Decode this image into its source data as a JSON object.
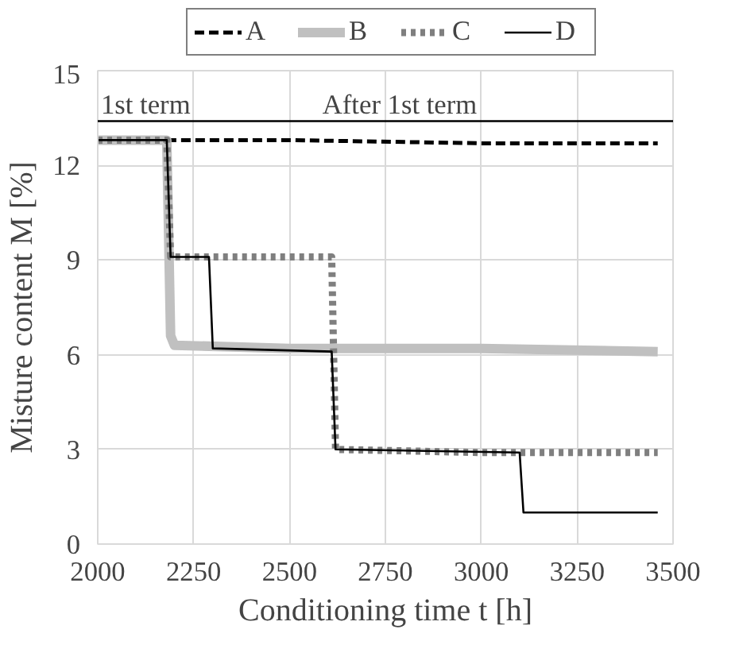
{
  "chart_data": {
    "type": "line",
    "xlabel": "Conditioning time t [h]",
    "ylabel": "Misture content M [%]",
    "xlim": [
      2000,
      3500
    ],
    "xticks": [
      2000,
      2250,
      2500,
      2750,
      3000,
      3250,
      3500
    ],
    "ylim": [
      0,
      15
    ],
    "yticks": [
      0,
      3,
      6,
      9,
      12,
      15
    ],
    "grid": true,
    "legend": "top",
    "marker": "none",
    "series": [
      {
        "name": "A",
        "color": "#000000",
        "line_style": "dashed",
        "x": [
          2180,
          2200,
          2500,
          3000,
          3460
        ],
        "values": [
          12.8,
          12.8,
          12.8,
          12.7,
          12.7
        ]
      },
      {
        "name": "B",
        "color": "#c0c0c0",
        "line_style": "solid",
        "x": [
          2000,
          2180,
          2190,
          2200,
          2500,
          3000,
          3460
        ],
        "values": [
          12.8,
          12.8,
          6.6,
          6.3,
          6.2,
          6.2,
          6.1
        ]
      },
      {
        "name": "C",
        "color": "#7f7f7f",
        "line_style": "dotted",
        "x": [
          2000,
          2180,
          2190,
          2610,
          2620,
          3000,
          3460
        ],
        "values": [
          12.8,
          12.8,
          9.1,
          9.1,
          3.0,
          2.9,
          2.9
        ]
      },
      {
        "name": "D",
        "color": "#000000",
        "line_style": "solid",
        "x": [
          2000,
          2180,
          2190,
          2290,
          2300,
          2610,
          2620,
          3100,
          3110,
          3460
        ],
        "values": [
          12.8,
          12.8,
          9.1,
          9.1,
          6.2,
          6.1,
          3.0,
          2.9,
          1.0,
          1.0
        ]
      }
    ],
    "ref_lines": [
      {
        "axis": "y",
        "value": 13.4,
        "label": null
      }
    ],
    "annotations": [
      "1st term",
      "After 1st term"
    ]
  }
}
